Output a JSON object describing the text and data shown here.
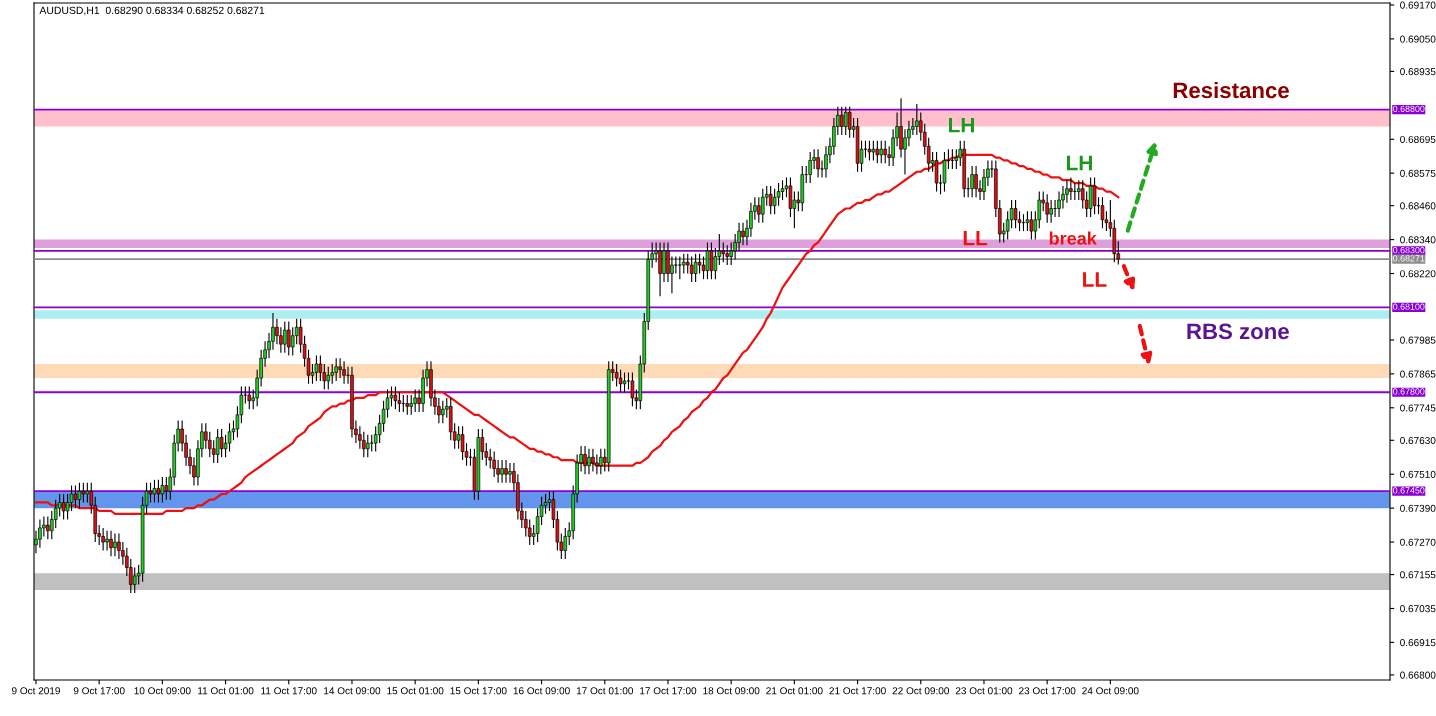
{
  "chart_data": {
    "type": "candlestick",
    "title": "AUDUSD,H1  0.68290 0.68334 0.68252 0.68271",
    "categories": [
      "9 Oct 2019",
      null,
      null,
      null,
      null,
      null,
      null,
      null,
      null,
      null,
      null,
      null,
      null,
      null,
      null,
      null,
      "9 Oct 17:00",
      null,
      null,
      null,
      null,
      null,
      null,
      null,
      null,
      null,
      null,
      null,
      null,
      null,
      null,
      null,
      "10 Oct 09:00",
      null,
      null,
      null,
      null,
      null,
      null,
      null,
      null,
      null,
      null,
      null,
      null,
      null,
      null,
      null,
      "11 Oct 01:00",
      null,
      null,
      null,
      null,
      null,
      null,
      null,
      null,
      null,
      null,
      null,
      null,
      null,
      null,
      null,
      "11 Oct 17:00",
      null,
      null,
      null,
      null,
      null,
      null,
      null,
      null,
      null,
      null,
      null,
      null,
      null,
      null,
      null,
      "14 Oct 09:00",
      null,
      null,
      null,
      null,
      null,
      null,
      null,
      null,
      null,
      null,
      null,
      null,
      null,
      null,
      null,
      "15 Oct 01:00",
      null,
      null,
      null,
      null,
      null,
      null,
      null,
      null,
      null,
      null,
      null,
      null,
      null,
      null,
      null,
      "15 Oct 17:00",
      null,
      null,
      null,
      null,
      null,
      null,
      null,
      null,
      null,
      null,
      null,
      null,
      null,
      null,
      null,
      "16 Oct 09:00",
      null,
      null,
      null,
      null,
      null,
      null,
      null,
      null,
      null,
      null,
      null,
      null,
      null,
      null,
      null,
      "17 Oct 01:00",
      null,
      null,
      null,
      null,
      null,
      null,
      null,
      null,
      null,
      null,
      null,
      null,
      null,
      null,
      null,
      "17 Oct 17:00",
      null,
      null,
      null,
      null,
      null,
      null,
      null,
      null,
      null,
      null,
      null,
      null,
      null,
      null,
      null,
      "18 Oct 09:00",
      null,
      null,
      null,
      null,
      null,
      null,
      null,
      null,
      null,
      null,
      null,
      null,
      null,
      null,
      null,
      "21 Oct 01:00",
      null,
      null,
      null,
      null,
      null,
      null,
      null,
      null,
      null,
      null,
      null,
      null,
      null,
      null,
      null,
      "21 Oct 17:00",
      null,
      null,
      null,
      null,
      null,
      null,
      null,
      null,
      null,
      null,
      null,
      null,
      null,
      null,
      null,
      "22 Oct 09:00",
      null,
      null,
      null,
      null,
      null,
      null,
      null,
      null,
      null,
      null,
      null,
      null,
      null,
      null,
      null,
      "23 Oct 01:00",
      null,
      null,
      null,
      null,
      null,
      null,
      null,
      null,
      null,
      null,
      null,
      null,
      null,
      null,
      null,
      "23 Oct 17:00",
      null,
      null,
      null,
      null,
      null,
      null,
      null,
      null,
      null,
      null,
      null,
      null,
      null,
      null,
      null,
      "24 Oct 09:00",
      null,
      null
    ],
    "ohlc": [
      [
        0.6726,
        0.6731,
        0.6723,
        0.6728
      ],
      [
        0.6728,
        0.6735,
        0.6725,
        0.6732
      ],
      [
        0.6732,
        0.6736,
        0.6729,
        0.6733
      ],
      [
        0.6733,
        0.6736,
        0.6728,
        0.6731
      ],
      [
        0.6731,
        0.6738,
        0.6728,
        0.6735
      ],
      [
        0.6735,
        0.6742,
        0.6732,
        0.6739
      ],
      [
        0.6739,
        0.6744,
        0.6736,
        0.6741
      ],
      [
        0.6741,
        0.6744,
        0.6735,
        0.6738
      ],
      [
        0.6738,
        0.6744,
        0.6735,
        0.6741
      ],
      [
        0.6741,
        0.6747,
        0.6738,
        0.6744
      ],
      [
        0.6744,
        0.6747,
        0.6739,
        0.6742
      ],
      [
        0.6742,
        0.6748,
        0.6739,
        0.6745
      ],
      [
        0.6745,
        0.6748,
        0.6741,
        0.6744
      ],
      [
        0.6744,
        0.6748,
        0.6741,
        0.6745
      ],
      [
        0.6745,
        0.6748,
        0.6737,
        0.674
      ],
      [
        0.674,
        0.6743,
        0.6727,
        0.673
      ],
      [
        0.673,
        0.6733,
        0.6726,
        0.6729
      ],
      [
        0.6729,
        0.6732,
        0.6724,
        0.6727
      ],
      [
        0.6727,
        0.6731,
        0.6724,
        0.6728
      ],
      [
        0.6728,
        0.6731,
        0.6722,
        0.6725
      ],
      [
        0.6725,
        0.673,
        0.6722,
        0.6727
      ],
      [
        0.6727,
        0.673,
        0.6721,
        0.6724
      ],
      [
        0.6724,
        0.6727,
        0.6719,
        0.6722
      ],
      [
        0.6722,
        0.6725,
        0.6715,
        0.6718
      ],
      [
        0.6718,
        0.6721,
        0.6709,
        0.6712
      ],
      [
        0.6712,
        0.6718,
        0.6709,
        0.6715
      ],
      [
        0.6715,
        0.6719,
        0.6712,
        0.6716
      ],
      [
        0.6716,
        0.6743,
        0.6713,
        0.674
      ],
      [
        0.674,
        0.6748,
        0.6737,
        0.6745
      ],
      [
        0.6745,
        0.6748,
        0.6741,
        0.6744
      ],
      [
        0.6744,
        0.6749,
        0.6741,
        0.6746
      ],
      [
        0.6746,
        0.6749,
        0.6741,
        0.6744
      ],
      [
        0.6744,
        0.675,
        0.6741,
        0.6747
      ],
      [
        0.6747,
        0.675,
        0.6742,
        0.6745
      ],
      [
        0.6745,
        0.6753,
        0.6742,
        0.675
      ],
      [
        0.675,
        0.6765,
        0.6747,
        0.6762
      ],
      [
        0.6762,
        0.677,
        0.6759,
        0.6767
      ],
      [
        0.6767,
        0.677,
        0.6759,
        0.6762
      ],
      [
        0.6762,
        0.6765,
        0.6754,
        0.6757
      ],
      [
        0.6757,
        0.676,
        0.6751,
        0.6754
      ],
      [
        0.6754,
        0.6757,
        0.6747,
        0.675
      ],
      [
        0.675,
        0.6763,
        0.6747,
        0.676
      ],
      [
        0.676,
        0.6769,
        0.6757,
        0.6766
      ],
      [
        0.6766,
        0.6769,
        0.676,
        0.6763
      ],
      [
        0.6763,
        0.6766,
        0.6757,
        0.676
      ],
      [
        0.676,
        0.6763,
        0.6755,
        0.6758
      ],
      [
        0.6758,
        0.6767,
        0.6755,
        0.6764
      ],
      [
        0.6764,
        0.6767,
        0.6757,
        0.676
      ],
      [
        0.676,
        0.6765,
        0.6757,
        0.6762
      ],
      [
        0.6762,
        0.6769,
        0.6759,
        0.6766
      ],
      [
        0.6766,
        0.677,
        0.6763,
        0.6767
      ],
      [
        0.6767,
        0.6775,
        0.6764,
        0.6772
      ],
      [
        0.6772,
        0.6782,
        0.6769,
        0.6779
      ],
      [
        0.6779,
        0.6782,
        0.6776,
        0.6779
      ],
      [
        0.6779,
        0.6782,
        0.6774,
        0.6777
      ],
      [
        0.6777,
        0.6781,
        0.6774,
        0.6778
      ],
      [
        0.6778,
        0.6788,
        0.6775,
        0.6785
      ],
      [
        0.6785,
        0.6795,
        0.6782,
        0.6792
      ],
      [
        0.6792,
        0.6798,
        0.6789,
        0.6795
      ],
      [
        0.6795,
        0.6801,
        0.6792,
        0.6798
      ],
      [
        0.6798,
        0.6808,
        0.6795,
        0.6803
      ],
      [
        0.6803,
        0.6806,
        0.6797,
        0.68
      ],
      [
        0.68,
        0.6803,
        0.6794,
        0.6797
      ],
      [
        0.6797,
        0.6805,
        0.6794,
        0.6802
      ],
      [
        0.6802,
        0.6805,
        0.6793,
        0.6796
      ],
      [
        0.6796,
        0.6803,
        0.6793,
        0.68
      ],
      [
        0.68,
        0.6806,
        0.6797,
        0.6803
      ],
      [
        0.6803,
        0.6806,
        0.6794,
        0.6797
      ],
      [
        0.6797,
        0.68,
        0.6789,
        0.6792
      ],
      [
        0.6792,
        0.6795,
        0.6783,
        0.6786
      ],
      [
        0.6786,
        0.679,
        0.6783,
        0.6787
      ],
      [
        0.6787,
        0.6793,
        0.6784,
        0.679
      ],
      [
        0.679,
        0.6793,
        0.6784,
        0.6787
      ],
      [
        0.6787,
        0.679,
        0.6781,
        0.6784
      ],
      [
        0.6784,
        0.6789,
        0.6781,
        0.6786
      ],
      [
        0.6786,
        0.679,
        0.6783,
        0.6787
      ],
      [
        0.6787,
        0.6792,
        0.6784,
        0.6789
      ],
      [
        0.6789,
        0.6792,
        0.6785,
        0.6788
      ],
      [
        0.6788,
        0.6791,
        0.6783,
        0.6786
      ],
      [
        0.6786,
        0.6789,
        0.6783,
        0.6786
      ],
      [
        0.6786,
        0.6789,
        0.6764,
        0.6767
      ],
      [
        0.6767,
        0.677,
        0.6762,
        0.6765
      ],
      [
        0.6765,
        0.6768,
        0.676,
        0.6763
      ],
      [
        0.6763,
        0.6766,
        0.6757,
        0.676
      ],
      [
        0.676,
        0.6765,
        0.6757,
        0.6762
      ],
      [
        0.6762,
        0.6765,
        0.6759,
        0.6762
      ],
      [
        0.6762,
        0.6768,
        0.6759,
        0.6765
      ],
      [
        0.6765,
        0.6772,
        0.6762,
        0.6769
      ],
      [
        0.6769,
        0.6777,
        0.6766,
        0.6774
      ],
      [
        0.6774,
        0.6781,
        0.6771,
        0.6778
      ],
      [
        0.6778,
        0.6782,
        0.6775,
        0.6779
      ],
      [
        0.6779,
        0.6782,
        0.6774,
        0.6777
      ],
      [
        0.6777,
        0.678,
        0.6773,
        0.6776
      ],
      [
        0.6776,
        0.6779,
        0.6773,
        0.6776
      ],
      [
        0.6776,
        0.6779,
        0.6772,
        0.6775
      ],
      [
        0.6775,
        0.6779,
        0.6772,
        0.6776
      ],
      [
        0.6776,
        0.6781,
        0.6773,
        0.6778
      ],
      [
        0.6778,
        0.6781,
        0.6773,
        0.6776
      ],
      [
        0.6776,
        0.6788,
        0.6773,
        0.6785
      ],
      [
        0.6785,
        0.6791,
        0.6782,
        0.6788
      ],
      [
        0.6788,
        0.6791,
        0.6775,
        0.6778
      ],
      [
        0.6778,
        0.6781,
        0.6772,
        0.6775
      ],
      [
        0.6775,
        0.6778,
        0.6769,
        0.6772
      ],
      [
        0.6772,
        0.6777,
        0.6769,
        0.6774
      ],
      [
        0.6774,
        0.6778,
        0.6771,
        0.6775
      ],
      [
        0.6775,
        0.6778,
        0.6763,
        0.6766
      ],
      [
        0.6766,
        0.6769,
        0.676,
        0.6763
      ],
      [
        0.6763,
        0.6768,
        0.676,
        0.6765
      ],
      [
        0.6765,
        0.6768,
        0.6756,
        0.6759
      ],
      [
        0.6759,
        0.6762,
        0.6754,
        0.6757
      ],
      [
        0.6757,
        0.676,
        0.6754,
        0.6757
      ],
      [
        0.6757,
        0.676,
        0.6742,
        0.6745
      ],
      [
        0.6745,
        0.6767,
        0.6742,
        0.6764
      ],
      [
        0.6764,
        0.6767,
        0.6756,
        0.6759
      ],
      [
        0.6759,
        0.6762,
        0.6754,
        0.6757
      ],
      [
        0.6757,
        0.676,
        0.6753,
        0.6756
      ],
      [
        0.6756,
        0.6759,
        0.675,
        0.6753
      ],
      [
        0.6753,
        0.6756,
        0.6748,
        0.6751
      ],
      [
        0.6751,
        0.6756,
        0.6748,
        0.6753
      ],
      [
        0.6753,
        0.6756,
        0.6748,
        0.6751
      ],
      [
        0.6751,
        0.6755,
        0.6748,
        0.6752
      ],
      [
        0.6752,
        0.6755,
        0.6745,
        0.6748
      ],
      [
        0.6748,
        0.6751,
        0.6735,
        0.6738
      ],
      [
        0.6738,
        0.6741,
        0.6732,
        0.6735
      ],
      [
        0.6735,
        0.6738,
        0.6729,
        0.6732
      ],
      [
        0.6732,
        0.6735,
        0.6726,
        0.6729
      ],
      [
        0.6729,
        0.6733,
        0.6726,
        0.673
      ],
      [
        0.673,
        0.6739,
        0.6727,
        0.6736
      ],
      [
        0.6736,
        0.6743,
        0.6733,
        0.674
      ],
      [
        0.674,
        0.6744,
        0.6737,
        0.6741
      ],
      [
        0.6741,
        0.6745,
        0.6738,
        0.6742
      ],
      [
        0.6742,
        0.6745,
        0.6732,
        0.6735
      ],
      [
        0.6735,
        0.6738,
        0.6724,
        0.6727
      ],
      [
        0.6727,
        0.673,
        0.6721,
        0.6724
      ],
      [
        0.6724,
        0.6732,
        0.6721,
        0.6729
      ],
      [
        0.6729,
        0.6734,
        0.6726,
        0.6731
      ],
      [
        0.6731,
        0.6747,
        0.6728,
        0.6744
      ],
      [
        0.6744,
        0.6758,
        0.6741,
        0.6755
      ],
      [
        0.6755,
        0.6761,
        0.6752,
        0.6758
      ],
      [
        0.6758,
        0.6761,
        0.6751,
        0.6754
      ],
      [
        0.6754,
        0.676,
        0.6751,
        0.6757
      ],
      [
        0.6757,
        0.676,
        0.6752,
        0.6755
      ],
      [
        0.6755,
        0.6758,
        0.6751,
        0.6754
      ],
      [
        0.6754,
        0.676,
        0.6751,
        0.6757
      ],
      [
        0.6757,
        0.676,
        0.6752,
        0.6755
      ],
      [
        0.6755,
        0.6791,
        0.6752,
        0.6788
      ],
      [
        0.6788,
        0.6791,
        0.6784,
        0.6787
      ],
      [
        0.6787,
        0.679,
        0.6782,
        0.6785
      ],
      [
        0.6785,
        0.6788,
        0.678,
        0.6783
      ],
      [
        0.6783,
        0.6787,
        0.678,
        0.6784
      ],
      [
        0.6784,
        0.6787,
        0.6781,
        0.6784
      ],
      [
        0.6784,
        0.6787,
        0.6775,
        0.6778
      ],
      [
        0.6778,
        0.6781,
        0.6774,
        0.6777
      ],
      [
        0.6777,
        0.6793,
        0.6774,
        0.679
      ],
      [
        0.679,
        0.6808,
        0.6787,
        0.6805
      ],
      [
        0.6805,
        0.683,
        0.6802,
        0.6827
      ],
      [
        0.6827,
        0.6833,
        0.6824,
        0.6829
      ],
      [
        0.6829,
        0.6833,
        0.6826,
        0.683
      ],
      [
        0.683,
        0.6833,
        0.6814,
        0.6822
      ],
      [
        0.6822,
        0.6833,
        0.6819,
        0.683
      ],
      [
        0.683,
        0.6833,
        0.6819,
        0.6822
      ],
      [
        0.6822,
        0.6828,
        0.6815,
        0.6825
      ],
      [
        0.6825,
        0.6828,
        0.6822,
        0.6825
      ],
      [
        0.6825,
        0.6828,
        0.682,
        0.6825
      ],
      [
        0.6825,
        0.6829,
        0.6822,
        0.6826
      ],
      [
        0.6826,
        0.6829,
        0.6822,
        0.6825
      ],
      [
        0.6825,
        0.6828,
        0.6819,
        0.6822
      ],
      [
        0.6822,
        0.6829,
        0.6819,
        0.6826
      ],
      [
        0.6826,
        0.6829,
        0.6822,
        0.6825
      ],
      [
        0.6825,
        0.6828,
        0.682,
        0.6823
      ],
      [
        0.6823,
        0.6833,
        0.682,
        0.683
      ],
      [
        0.683,
        0.6833,
        0.682,
        0.6823
      ],
      [
        0.6823,
        0.6831,
        0.682,
        0.6828
      ],
      [
        0.6828,
        0.6836,
        0.6825,
        0.683
      ],
      [
        0.683,
        0.6833,
        0.6826,
        0.6829
      ],
      [
        0.6829,
        0.6832,
        0.6825,
        0.6828
      ],
      [
        0.6828,
        0.6833,
        0.6825,
        0.683
      ],
      [
        0.683,
        0.6836,
        0.6827,
        0.6833
      ],
      [
        0.6833,
        0.684,
        0.683,
        0.6837
      ],
      [
        0.6837,
        0.684,
        0.6832,
        0.6835
      ],
      [
        0.6835,
        0.6841,
        0.6832,
        0.6838
      ],
      [
        0.6838,
        0.6847,
        0.6835,
        0.6844
      ],
      [
        0.6844,
        0.6849,
        0.6841,
        0.6846
      ],
      [
        0.6846,
        0.6849,
        0.684,
        0.6843
      ],
      [
        0.6843,
        0.6852,
        0.684,
        0.6849
      ],
      [
        0.6849,
        0.6853,
        0.6846,
        0.685
      ],
      [
        0.685,
        0.6853,
        0.6843,
        0.6846
      ],
      [
        0.6846,
        0.6852,
        0.6843,
        0.6849
      ],
      [
        0.6849,
        0.6854,
        0.6846,
        0.6851
      ],
      [
        0.6851,
        0.6855,
        0.6848,
        0.6852
      ],
      [
        0.6852,
        0.6856,
        0.6849,
        0.6853
      ],
      [
        0.6853,
        0.6856,
        0.6842,
        0.6845
      ],
      [
        0.6845,
        0.6851,
        0.6838,
        0.6848
      ],
      [
        0.6848,
        0.6851,
        0.6844,
        0.6847
      ],
      [
        0.6847,
        0.686,
        0.6844,
        0.6857
      ],
      [
        0.6857,
        0.686,
        0.6854,
        0.6857
      ],
      [
        0.6857,
        0.6865,
        0.6854,
        0.6862
      ],
      [
        0.6862,
        0.6866,
        0.6859,
        0.6863
      ],
      [
        0.6863,
        0.6866,
        0.6856,
        0.6859
      ],
      [
        0.6859,
        0.6862,
        0.6856,
        0.6859
      ],
      [
        0.6859,
        0.6867,
        0.6856,
        0.6864
      ],
      [
        0.6864,
        0.687,
        0.6861,
        0.6867
      ],
      [
        0.6867,
        0.6877,
        0.6864,
        0.6874
      ],
      [
        0.6874,
        0.6881,
        0.6871,
        0.6878
      ],
      [
        0.6878,
        0.6881,
        0.6871,
        0.6874
      ],
      [
        0.6874,
        0.6881,
        0.6871,
        0.6879
      ],
      [
        0.6879,
        0.6881,
        0.687,
        0.6873
      ],
      [
        0.6873,
        0.6877,
        0.687,
        0.6874
      ],
      [
        0.6874,
        0.6877,
        0.6858,
        0.6861
      ],
      [
        0.6861,
        0.6869,
        0.6858,
        0.6866
      ],
      [
        0.6866,
        0.6869,
        0.6863,
        0.6866
      ],
      [
        0.6866,
        0.6869,
        0.6862,
        0.6865
      ],
      [
        0.6865,
        0.6869,
        0.6862,
        0.6866
      ],
      [
        0.6866,
        0.6869,
        0.6861,
        0.6864
      ],
      [
        0.6864,
        0.6869,
        0.6861,
        0.6866
      ],
      [
        0.6866,
        0.6869,
        0.6861,
        0.6864
      ],
      [
        0.6864,
        0.6867,
        0.686,
        0.6863
      ],
      [
        0.6863,
        0.6873,
        0.686,
        0.687
      ],
      [
        0.687,
        0.6879,
        0.6867,
        0.6874
      ],
      [
        0.6874,
        0.6884,
        0.6863,
        0.6866
      ],
      [
        0.6866,
        0.6873,
        0.6857,
        0.687
      ],
      [
        0.687,
        0.6876,
        0.6867,
        0.6873
      ],
      [
        0.6873,
        0.6877,
        0.6871,
        0.6874
      ],
      [
        0.6874,
        0.6882,
        0.6871,
        0.6876
      ],
      [
        0.6876,
        0.6879,
        0.6869,
        0.6872
      ],
      [
        0.6872,
        0.6875,
        0.6864,
        0.6867
      ],
      [
        0.6867,
        0.687,
        0.6858,
        0.6861
      ],
      [
        0.6861,
        0.6865,
        0.6858,
        0.6862
      ],
      [
        0.6862,
        0.6865,
        0.6851,
        0.6854
      ],
      [
        0.6854,
        0.6857,
        0.685,
        0.6854
      ],
      [
        0.6854,
        0.6865,
        0.6851,
        0.6862
      ],
      [
        0.6862,
        0.6866,
        0.6859,
        0.6862
      ],
      [
        0.6862,
        0.6866,
        0.6859,
        0.6862
      ],
      [
        0.6862,
        0.6866,
        0.6859,
        0.6863
      ],
      [
        0.6863,
        0.6869,
        0.686,
        0.6866
      ],
      [
        0.6866,
        0.6869,
        0.6849,
        0.6852
      ],
      [
        0.6852,
        0.6856,
        0.6849,
        0.6852
      ],
      [
        0.6852,
        0.686,
        0.6849,
        0.6857
      ],
      [
        0.6857,
        0.686,
        0.6849,
        0.6852
      ],
      [
        0.6852,
        0.6855,
        0.6848,
        0.6851
      ],
      [
        0.6851,
        0.6859,
        0.6848,
        0.6856
      ],
      [
        0.6856,
        0.6862,
        0.6853,
        0.6859
      ],
      [
        0.6859,
        0.6862,
        0.6856,
        0.6859
      ],
      [
        0.6859,
        0.6862,
        0.6842,
        0.6845
      ],
      [
        0.6845,
        0.6848,
        0.6833,
        0.6836
      ],
      [
        0.6836,
        0.684,
        0.6833,
        0.6837
      ],
      [
        0.6837,
        0.6844,
        0.6834,
        0.6841
      ],
      [
        0.6841,
        0.6848,
        0.6838,
        0.6845
      ],
      [
        0.6845,
        0.6848,
        0.6838,
        0.6841
      ],
      [
        0.6841,
        0.6844,
        0.6837,
        0.684
      ],
      [
        0.684,
        0.6843,
        0.6837,
        0.684
      ],
      [
        0.684,
        0.6844,
        0.6837,
        0.6841
      ],
      [
        0.6841,
        0.6844,
        0.6834,
        0.6837
      ],
      [
        0.6837,
        0.6844,
        0.6834,
        0.6841
      ],
      [
        0.6841,
        0.6851,
        0.6838,
        0.6848
      ],
      [
        0.6848,
        0.6851,
        0.6844,
        0.6847
      ],
      [
        0.6847,
        0.685,
        0.684,
        0.6843
      ],
      [
        0.6843,
        0.6848,
        0.684,
        0.6845
      ],
      [
        0.6845,
        0.6848,
        0.6842,
        0.6845
      ],
      [
        0.6845,
        0.6851,
        0.6842,
        0.6848
      ],
      [
        0.6848,
        0.6853,
        0.6845,
        0.685
      ],
      [
        0.685,
        0.6855,
        0.6847,
        0.6852
      ],
      [
        0.6852,
        0.6856,
        0.6848,
        0.6851
      ],
      [
        0.6851,
        0.6854,
        0.6848,
        0.6851
      ],
      [
        0.6851,
        0.6855,
        0.6848,
        0.6852
      ],
      [
        0.6852,
        0.6855,
        0.6845,
        0.6848
      ],
      [
        0.6848,
        0.6851,
        0.6842,
        0.6845
      ],
      [
        0.6845,
        0.6856,
        0.6842,
        0.6853
      ],
      [
        0.6853,
        0.6856,
        0.6843,
        0.6846
      ],
      [
        0.6846,
        0.6849,
        0.6843,
        0.6846
      ],
      [
        0.6846,
        0.6849,
        0.6838,
        0.6841
      ],
      [
        0.6841,
        0.6844,
        0.6837,
        0.684
      ],
      [
        0.684,
        0.6848,
        0.6835,
        0.6838
      ],
      [
        0.6838,
        0.6841,
        0.6826,
        0.6829
      ],
      [
        0.6829,
        0.68334,
        0.68252,
        0.68271
      ]
    ],
    "series": [
      {
        "type": "line",
        "color": "#ee1111",
        "values": [
          0.6741,
          0.6741,
          0.6741,
          0.6741,
          0.674,
          0.674,
          0.674,
          0.674,
          0.674,
          0.674,
          0.674,
          0.6739,
          0.6739,
          0.6739,
          0.6739,
          0.6739,
          0.6738,
          0.6738,
          0.6738,
          0.6738,
          0.6737,
          0.6737,
          0.6737,
          0.6737,
          0.6737,
          0.6737,
          0.6737,
          0.6737,
          0.6737,
          0.6737,
          0.6737,
          0.6737,
          0.6737,
          0.6738,
          0.6738,
          0.6738,
          0.6738,
          0.6738,
          0.6739,
          0.6739,
          0.6739,
          0.674,
          0.674,
          0.6741,
          0.6742,
          0.6742,
          0.6743,
          0.6744,
          0.6744,
          0.6745,
          0.6746,
          0.6747,
          0.6748,
          0.675,
          0.6751,
          0.6752,
          0.6753,
          0.6754,
          0.6755,
          0.6756,
          0.6757,
          0.6758,
          0.6759,
          0.676,
          0.6761,
          0.6762,
          0.6764,
          0.6765,
          0.6766,
          0.6768,
          0.6769,
          0.677,
          0.6771,
          0.6773,
          0.6774,
          0.6775,
          0.6775,
          0.6776,
          0.6776,
          0.6777,
          0.6777,
          0.6778,
          0.6778,
          0.6778,
          0.6779,
          0.6779,
          0.6779,
          0.678,
          0.678,
          0.678,
          0.678,
          0.678,
          0.678,
          0.678,
          0.678,
          0.678,
          0.678,
          0.678,
          0.678,
          0.678,
          0.678,
          0.678,
          0.678,
          0.678,
          0.6779,
          0.6778,
          0.6777,
          0.6776,
          0.6775,
          0.6774,
          0.6773,
          0.6772,
          0.6772,
          0.6771,
          0.677,
          0.6769,
          0.6768,
          0.6767,
          0.6766,
          0.6765,
          0.6764,
          0.6764,
          0.6763,
          0.6762,
          0.6761,
          0.676,
          0.676,
          0.6759,
          0.6759,
          0.6758,
          0.6758,
          0.6757,
          0.6757,
          0.6756,
          0.6756,
          0.6756,
          0.6756,
          0.6755,
          0.6755,
          0.6755,
          0.6755,
          0.6755,
          0.6754,
          0.6754,
          0.6754,
          0.6754,
          0.6754,
          0.6754,
          0.6754,
          0.6754,
          0.6754,
          0.6754,
          0.6755,
          0.6755,
          0.6756,
          0.6757,
          0.6759,
          0.676,
          0.6761,
          0.6763,
          0.6764,
          0.6766,
          0.6767,
          0.6768,
          0.677,
          0.6771,
          0.6773,
          0.6774,
          0.6775,
          0.6777,
          0.6778,
          0.678,
          0.6781,
          0.6783,
          0.6785,
          0.6786,
          0.6788,
          0.679,
          0.6792,
          0.6794,
          0.6795,
          0.6797,
          0.6799,
          0.6801,
          0.6803,
          0.6806,
          0.6808,
          0.6811,
          0.6814,
          0.6817,
          0.6819,
          0.6821,
          0.6823,
          0.6825,
          0.6827,
          0.6829,
          0.683,
          0.6832,
          0.6833,
          0.6835,
          0.6837,
          0.6839,
          0.6841,
          0.6843,
          0.6844,
          0.6845,
          0.6845,
          0.6846,
          0.6847,
          0.6847,
          0.6848,
          0.6848,
          0.6849,
          0.685,
          0.685,
          0.6851,
          0.6851,
          0.6852,
          0.6853,
          0.6854,
          0.6855,
          0.6856,
          0.6857,
          0.6858,
          0.6858,
          0.6859,
          0.6859,
          0.686,
          0.6861,
          0.6861,
          0.6862,
          0.6862,
          0.6863,
          0.6863,
          0.6864,
          0.6864,
          0.6864,
          0.6864,
          0.6864,
          0.6864,
          0.6864,
          0.6864,
          0.6864,
          0.6863,
          0.6863,
          0.6862,
          0.6862,
          0.6861,
          0.6861,
          0.686,
          0.686,
          0.6859,
          0.6859,
          0.6858,
          0.6858,
          0.6857,
          0.6857,
          0.6856,
          0.6856,
          0.6856,
          0.6855,
          0.6855,
          0.6855,
          0.6854,
          0.6854,
          0.6854,
          0.6853,
          0.6853,
          0.6853,
          0.6852,
          0.6852,
          0.6851,
          0.6851,
          0.685,
          0.6849
        ]
      }
    ],
    "ylim": [
      0.66782,
      0.69177
    ],
    "yticks": [
      {
        "value": 0.6917,
        "label": "0.69170"
      },
      {
        "value": 0.6905,
        "label": "0.69050"
      },
      {
        "value": 0.68935,
        "label": "0.68935"
      },
      {
        "value": 0.68695,
        "label": "0.68695"
      },
      {
        "value": 0.68575,
        "label": "0.68575"
      },
      {
        "value": 0.6846,
        "label": "0.68460"
      },
      {
        "value": 0.6834,
        "label": "0.68340"
      },
      {
        "value": 0.6822,
        "label": "0.68220"
      },
      {
        "value": 0.67985,
        "label": "0.67985"
      },
      {
        "value": 0.67865,
        "label": "0.67865"
      },
      {
        "value": 0.67745,
        "label": "0.67745"
      },
      {
        "value": 0.6763,
        "label": "0.67630"
      },
      {
        "value": 0.6751,
        "label": "0.67510"
      },
      {
        "value": 0.6739,
        "label": "0.67390"
      },
      {
        "value": 0.6727,
        "label": "0.67270"
      },
      {
        "value": 0.67155,
        "label": "0.67155"
      },
      {
        "value": 0.67035,
        "label": "0.67035"
      },
      {
        "value": 0.66915,
        "label": "0.66915"
      },
      {
        "value": 0.668,
        "label": "0.66800"
      }
    ],
    "ref_lines": [
      {
        "axis": "y",
        "value": 0.688,
        "label": "0.68800",
        "color": "#8a00d4"
      },
      {
        "axis": "y",
        "value": 0.683,
        "label": "0.68300",
        "color": "#8a00d4"
      },
      {
        "axis": "y",
        "value": 0.68271,
        "label": "0.68271",
        "color": "#8c8c8c"
      },
      {
        "axis": "y",
        "value": 0.681,
        "label": "0.68100",
        "color": "#8a00d4"
      },
      {
        "axis": "y",
        "value": 0.678,
        "label": "0.67800",
        "color": "#8a00d4"
      },
      {
        "axis": "y",
        "value": 0.6745,
        "label": "0.67450",
        "color": "#8a00d4"
      }
    ],
    "bands": [
      {
        "axis": "y",
        "from": 0.6874,
        "to": 0.688,
        "color": "#ffc0cb",
        "label": "Resistance"
      },
      {
        "axis": "y",
        "from": 0.6831,
        "to": 0.6834,
        "color": "#dda0dd"
      },
      {
        "axis": "y",
        "from": 0.6806,
        "to": 0.6809,
        "color": "#afeeee",
        "label": "RBS zone"
      },
      {
        "axis": "y",
        "from": 0.6785,
        "to": 0.679,
        "color": "#ffdab9"
      },
      {
        "axis": "y",
        "from": 0.6739,
        "to": 0.6745,
        "color": "#6495ed"
      },
      {
        "axis": "y",
        "from": 0.671,
        "to": 0.6716,
        "color": "#c0c0c0"
      }
    ],
    "annotations": [
      "LH",
      "LH",
      "LL",
      "break",
      "LL"
    ],
    "grid": false,
    "legend": false
  }
}
